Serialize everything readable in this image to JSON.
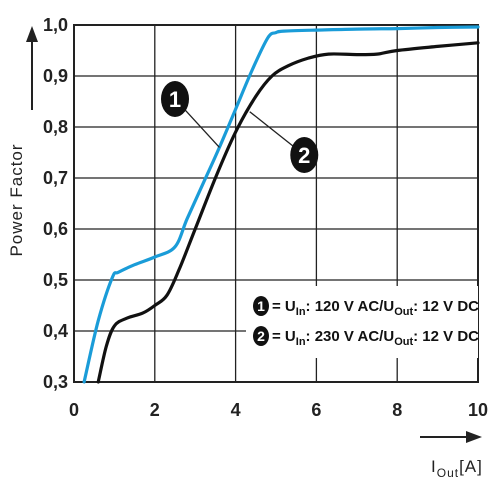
{
  "chart_data": {
    "type": "line",
    "ylabel": "Power Factor",
    "xlabel_main": "I",
    "xlabel_sub": "Out",
    "xlabel_unit": "[A]",
    "xlim": [
      0,
      10
    ],
    "ylim": [
      0.3,
      1.0
    ],
    "x_ticks": [
      "0",
      "2",
      "4",
      "6",
      "8",
      "10"
    ],
    "y_ticks": [
      "0,3",
      "0,4",
      "0,5",
      "0,6",
      "0,7",
      "0,8",
      "0,9",
      "1,0"
    ],
    "grid": true,
    "series": [
      {
        "name": "1",
        "color": "#1a9cd8",
        "x": [
          0.25,
          0.6,
          0.95,
          1.1,
          1.5,
          2.0,
          2.5,
          2.8,
          3.2,
          3.6,
          4.0,
          4.4,
          4.8,
          5.0,
          5.2,
          6.0,
          7.0,
          8.0,
          9.0,
          10.0
        ],
        "y": [
          0.3,
          0.42,
          0.505,
          0.515,
          0.53,
          0.545,
          0.565,
          0.62,
          0.69,
          0.76,
          0.835,
          0.91,
          0.975,
          0.985,
          0.988,
          0.99,
          0.992,
          0.993,
          0.995,
          0.996
        ]
      },
      {
        "name": "2",
        "color": "#111111",
        "x": [
          0.6,
          0.8,
          1.0,
          1.3,
          1.7,
          2.0,
          2.3,
          2.6,
          3.0,
          3.5,
          4.0,
          4.5,
          4.9,
          5.3,
          5.8,
          6.3,
          7.0,
          7.5,
          8.0,
          9.0,
          10.0
        ],
        "y": [
          0.3,
          0.37,
          0.41,
          0.425,
          0.435,
          0.45,
          0.47,
          0.52,
          0.6,
          0.7,
          0.79,
          0.86,
          0.9,
          0.92,
          0.935,
          0.943,
          0.942,
          0.943,
          0.95,
          0.958,
          0.965
        ]
      }
    ],
    "markers": [
      {
        "label": "1",
        "x": 2.5,
        "y": 0.855,
        "pointer_x": 3.6,
        "pointer_y": 0.76
      },
      {
        "label": "2",
        "x": 5.7,
        "y": 0.745,
        "pointer_x": 4.35,
        "pointer_y": 0.83
      }
    ],
    "legend": {
      "placement": "bottom-right",
      "items": [
        {
          "label": "1",
          "pre": "= U",
          "sub1": "In",
          "mid": ": 120 V AC/U",
          "sub2": "Out",
          "post": ": 12 V DC"
        },
        {
          "label": "2",
          "pre": "= U",
          "sub1": "In",
          "mid": ": 230 V AC/U",
          "sub2": "Out",
          "post": ": 12 V DC"
        }
      ]
    }
  }
}
